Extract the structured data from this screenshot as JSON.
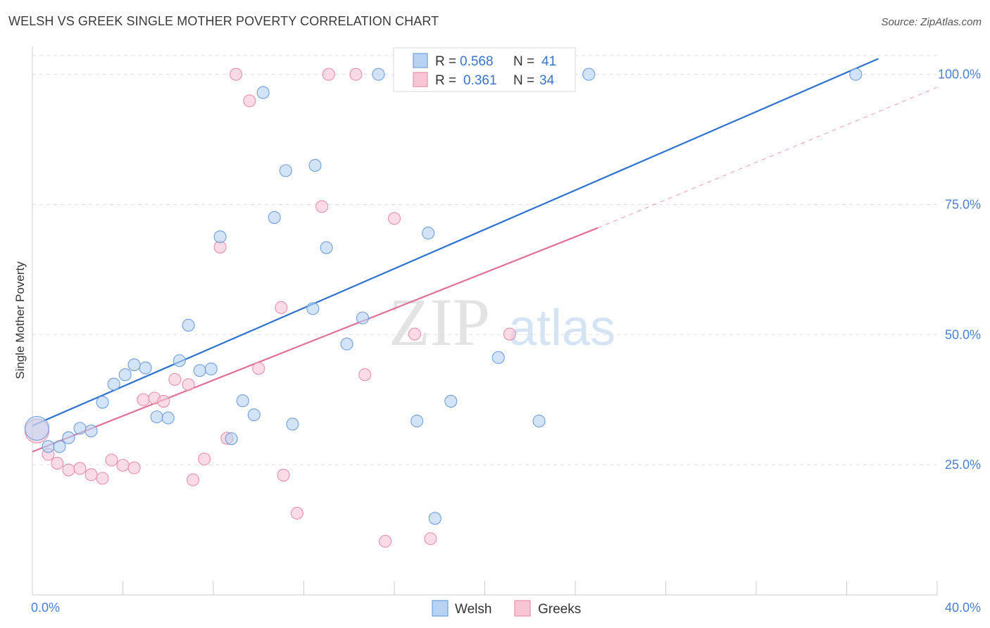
{
  "header": {
    "title": "WELSH VS GREEK SINGLE MOTHER POVERTY CORRELATION CHART",
    "source": "Source: ZipAtlas.com"
  },
  "watermark": {
    "zip": "ZIP",
    "atlas": "atlas"
  },
  "colors": {
    "welsh_fill": "#b8d2f3",
    "welsh_stroke": "#6f9fdc",
    "welsh_line": "#2e72cf",
    "greeks_fill": "#f8c5d5",
    "greeks_stroke": "#e88fac",
    "greeks_line": "#e0709a",
    "tick_label": "#4a7fd0",
    "grid": "#dddddd"
  },
  "legend_top": {
    "rows": [
      {
        "r_label": "R =",
        "r_value": "0.568",
        "n_label": "N =",
        "n_value": "41"
      },
      {
        "r_label": "R =",
        "r_value": "0.361",
        "n_label": "N =",
        "n_value": "34"
      }
    ]
  },
  "legend_bottom": {
    "items": [
      "Welsh",
      "Greeks"
    ]
  },
  "chart_data": {
    "type": "scatter",
    "title": "WELSH VS GREEK SINGLE MOTHER POVERTY CORRELATION CHART",
    "xlabel": "",
    "ylabel": "Single Mother Poverty",
    "xlim": [
      0,
      40
    ],
    "ylim": [
      0,
      104
    ],
    "x_tick_labels": [
      "0.0%",
      "40.0%"
    ],
    "y_tick_values": [
      25,
      50,
      75,
      100
    ],
    "y_tick_labels": [
      "25.0%",
      "50.0%",
      "75.0%",
      "100.0%"
    ],
    "grid": true,
    "legend_position": "top-center",
    "series": [
      {
        "name": "Welsh",
        "r": 0.568,
        "n": 41,
        "trend": {
          "x": [
            0.0,
            37.4
          ],
          "y": [
            32.5,
            103.0
          ]
        },
        "points": [
          {
            "x": 0.2,
            "y": 32.0,
            "big": true
          },
          {
            "x": 0.7,
            "y": 28.5
          },
          {
            "x": 1.2,
            "y": 28.5
          },
          {
            "x": 1.6,
            "y": 30.2
          },
          {
            "x": 2.1,
            "y": 32.0
          },
          {
            "x": 2.6,
            "y": 31.5
          },
          {
            "x": 3.1,
            "y": 37.0
          },
          {
            "x": 3.6,
            "y": 40.5
          },
          {
            "x": 4.1,
            "y": 42.3
          },
          {
            "x": 4.5,
            "y": 44.2
          },
          {
            "x": 5.0,
            "y": 43.6
          },
          {
            "x": 5.5,
            "y": 34.2
          },
          {
            "x": 6.0,
            "y": 34.0
          },
          {
            "x": 6.5,
            "y": 45.0
          },
          {
            "x": 6.9,
            "y": 51.8
          },
          {
            "x": 7.4,
            "y": 43.1
          },
          {
            "x": 7.9,
            "y": 43.4
          },
          {
            "x": 8.3,
            "y": 68.8
          },
          {
            "x": 8.8,
            "y": 30.0
          },
          {
            "x": 9.3,
            "y": 37.3
          },
          {
            "x": 9.8,
            "y": 34.6
          },
          {
            "x": 10.2,
            "y": 96.5
          },
          {
            "x": 10.7,
            "y": 72.5
          },
          {
            "x": 11.2,
            "y": 81.5
          },
          {
            "x": 11.5,
            "y": 32.8
          },
          {
            "x": 12.4,
            "y": 55.0
          },
          {
            "x": 12.5,
            "y": 82.5
          },
          {
            "x": 13.0,
            "y": 66.7
          },
          {
            "x": 13.9,
            "y": 48.2
          },
          {
            "x": 14.6,
            "y": 53.2
          },
          {
            "x": 15.3,
            "y": 100.0
          },
          {
            "x": 17.0,
            "y": 33.4
          },
          {
            "x": 17.5,
            "y": 69.5
          },
          {
            "x": 17.8,
            "y": 14.7
          },
          {
            "x": 18.5,
            "y": 37.2
          },
          {
            "x": 20.0,
            "y": 100.0
          },
          {
            "x": 20.6,
            "y": 45.6
          },
          {
            "x": 22.0,
            "y": 100.0
          },
          {
            "x": 22.4,
            "y": 33.4
          },
          {
            "x": 24.6,
            "y": 100.0
          },
          {
            "x": 36.4,
            "y": 100.0
          }
        ]
      },
      {
        "name": "Greeks",
        "r": 0.361,
        "n": 34,
        "trend": {
          "x": [
            0.0,
            25.0
          ],
          "y": [
            27.5,
            70.5
          ]
        },
        "trend_ext": {
          "x": [
            25.0,
            40.0
          ],
          "y": [
            70.5,
            97.5
          ]
        },
        "points": [
          {
            "x": 0.2,
            "y": 31.5,
            "big": true
          },
          {
            "x": 0.7,
            "y": 27.0
          },
          {
            "x": 1.1,
            "y": 25.3
          },
          {
            "x": 1.6,
            "y": 24.0
          },
          {
            "x": 2.1,
            "y": 24.3
          },
          {
            "x": 2.6,
            "y": 23.1
          },
          {
            "x": 3.1,
            "y": 22.4
          },
          {
            "x": 3.5,
            "y": 25.9
          },
          {
            "x": 4.0,
            "y": 24.9
          },
          {
            "x": 4.5,
            "y": 24.4
          },
          {
            "x": 4.9,
            "y": 37.5
          },
          {
            "x": 5.4,
            "y": 37.8
          },
          {
            "x": 5.8,
            "y": 37.2
          },
          {
            "x": 6.3,
            "y": 41.4
          },
          {
            "x": 6.9,
            "y": 40.4
          },
          {
            "x": 7.1,
            "y": 22.1
          },
          {
            "x": 7.6,
            "y": 26.1
          },
          {
            "x": 8.3,
            "y": 66.8
          },
          {
            "x": 8.6,
            "y": 30.1
          },
          {
            "x": 9.0,
            "y": 100.0
          },
          {
            "x": 9.6,
            "y": 94.9
          },
          {
            "x": 10.0,
            "y": 43.5
          },
          {
            "x": 11.0,
            "y": 55.2
          },
          {
            "x": 11.1,
            "y": 23.0
          },
          {
            "x": 11.7,
            "y": 15.7
          },
          {
            "x": 12.8,
            "y": 74.6
          },
          {
            "x": 13.1,
            "y": 100.0
          },
          {
            "x": 14.3,
            "y": 100.0
          },
          {
            "x": 14.7,
            "y": 42.3
          },
          {
            "x": 15.6,
            "y": 10.3
          },
          {
            "x": 16.0,
            "y": 72.3
          },
          {
            "x": 16.9,
            "y": 50.1
          },
          {
            "x": 17.6,
            "y": 10.8
          },
          {
            "x": 21.1,
            "y": 50.1
          }
        ]
      }
    ]
  }
}
